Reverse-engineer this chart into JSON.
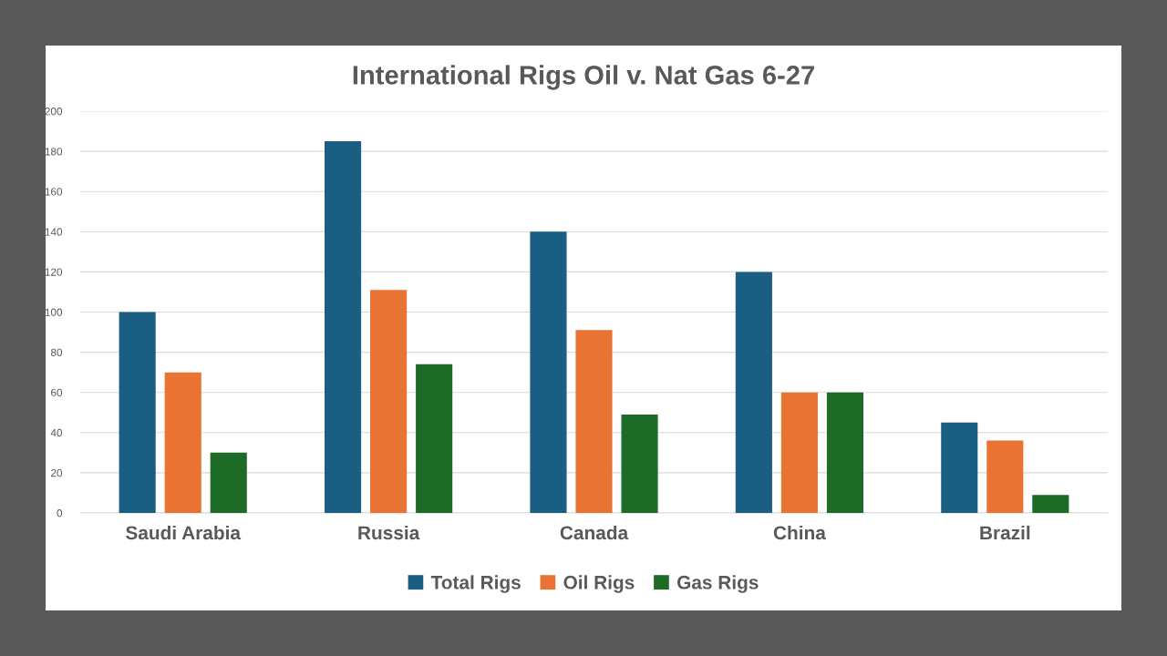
{
  "chart_data": {
    "type": "bar",
    "title": "International Rigs Oil v. Nat Gas 6-27",
    "categories": [
      "Saudi Arabia",
      "Russia",
      "Canada",
      "China",
      "Brazil"
    ],
    "series": [
      {
        "name": "Total Rigs",
        "color": "#1a5e83",
        "values": [
          100,
          185,
          140,
          120,
          45
        ]
      },
      {
        "name": "Oil Rigs",
        "color": "#e87333",
        "values": [
          70,
          111,
          91,
          60,
          36
        ]
      },
      {
        "name": "Gas Rigs",
        "color": "#1d6b27",
        "values": [
          30,
          74,
          49,
          60,
          9
        ]
      }
    ],
    "ylim": [
      0,
      200
    ],
    "yticks": [
      0,
      20,
      40,
      60,
      80,
      100,
      120,
      140,
      160,
      180,
      200
    ],
    "grid": "y",
    "legend": "bottom"
  }
}
